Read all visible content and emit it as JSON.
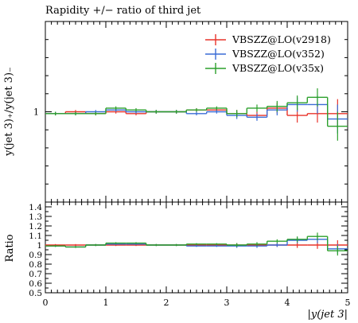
{
  "chart_data": [
    {
      "type": "line",
      "panel": "main",
      "title": "Rapidity +/− ratio of third jet",
      "ylabel": "y(jet 3)₊/y(jet 3)₋",
      "xlim": [
        0,
        5
      ],
      "ylim": [
        0.5,
        1.5
      ],
      "yticks_labeled": [
        {
          "value": 1,
          "label": "1"
        }
      ],
      "legend_position": "top-right",
      "bin_edges": [
        0,
        0.333,
        0.667,
        1,
        1.333,
        1.667,
        2,
        2.333,
        2.667,
        3,
        3.333,
        3.667,
        4,
        4.333,
        4.667,
        5
      ],
      "series": [
        {
          "name": "VBSZZ@LO(v2918)",
          "color": "#e8332a",
          "values": [
            0.99,
            1.0,
            0.99,
            1.0,
            0.99,
            1.0,
            1.0,
            1.01,
            1.01,
            0.99,
            0.98,
            1.02,
            0.98,
            0.99,
            0.99
          ],
          "errors": [
            0.01,
            0.01,
            0.01,
            0.01,
            0.01,
            0.01,
            0.01,
            0.01,
            0.01,
            0.02,
            0.02,
            0.03,
            0.04,
            0.05,
            0.08
          ]
        },
        {
          "name": "VBSZZ@LO(v352)",
          "color": "#3a6cd6",
          "values": [
            0.99,
            0.99,
            1.0,
            1.01,
            1.0,
            1.0,
            1.0,
            0.99,
            1.0,
            0.98,
            0.97,
            1.01,
            1.04,
            1.04,
            0.96
          ],
          "errors": [
            0.01,
            0.01,
            0.01,
            0.01,
            0.01,
            0.01,
            0.01,
            0.01,
            0.01,
            0.02,
            0.02,
            0.03,
            0.04,
            0.05,
            0.08
          ]
        },
        {
          "name": "VBSZZ@LO(v35x)",
          "color": "#2ca02c",
          "values": [
            0.99,
            0.99,
            0.99,
            1.02,
            1.01,
            1.0,
            1.0,
            1.01,
            1.02,
            0.99,
            1.02,
            1.03,
            1.05,
            1.08,
            0.92
          ],
          "errors": [
            0.01,
            0.01,
            0.01,
            0.01,
            0.01,
            0.01,
            0.01,
            0.01,
            0.01,
            0.02,
            0.02,
            0.03,
            0.04,
            0.05,
            0.08
          ]
        }
      ]
    },
    {
      "type": "line",
      "panel": "ratio",
      "ylabel": "Ratio",
      "xlabel": "|y(jet 3|",
      "xlim": [
        0,
        5
      ],
      "ylim": [
        0.5,
        1.45
      ],
      "xticks": [
        "0",
        "1",
        "2",
        "3",
        "4",
        "5"
      ],
      "yticks": [
        "0.5",
        "0.6",
        "0.7",
        "0.8",
        "0.9",
        "1",
        "1.1",
        "1.2",
        "1.3",
        "1.4"
      ],
      "bin_edges": [
        0,
        0.333,
        0.667,
        1,
        1.333,
        1.667,
        2,
        2.333,
        2.667,
        3,
        3.333,
        3.667,
        4,
        4.333,
        4.667,
        5
      ],
      "series": [
        {
          "name": "VBSZZ@LO(v2918)",
          "color": "#e8332a",
          "values": [
            1.0,
            1.0,
            1.0,
            1.0,
            1.0,
            1.0,
            1.0,
            1.0,
            1.0,
            1.0,
            1.0,
            1.0,
            1.0,
            1.0,
            1.0
          ],
          "errors": [
            0.01,
            0.01,
            0.01,
            0.01,
            0.01,
            0.01,
            0.01,
            0.01,
            0.01,
            0.02,
            0.02,
            0.02,
            0.03,
            0.04,
            0.05
          ]
        },
        {
          "name": "VBSZZ@LO(v352)",
          "color": "#3a6cd6",
          "values": [
            0.99,
            0.98,
            1.0,
            1.01,
            1.01,
            1.0,
            1.0,
            0.99,
            0.99,
            0.99,
            0.99,
            1.0,
            1.05,
            1.06,
            0.96
          ],
          "errors": [
            0.01,
            0.01,
            0.01,
            0.01,
            0.01,
            0.01,
            0.01,
            0.01,
            0.01,
            0.02,
            0.02,
            0.02,
            0.03,
            0.04,
            0.05
          ]
        },
        {
          "name": "VBSZZ@LO(v35x)",
          "color": "#2ca02c",
          "values": [
            0.99,
            0.98,
            1.0,
            1.02,
            1.02,
            1.0,
            1.0,
            1.01,
            1.01,
            1.0,
            1.01,
            1.04,
            1.06,
            1.09,
            0.94
          ],
          "errors": [
            0.01,
            0.01,
            0.01,
            0.01,
            0.01,
            0.01,
            0.01,
            0.01,
            0.01,
            0.02,
            0.02,
            0.02,
            0.03,
            0.04,
            0.05
          ]
        }
      ]
    }
  ]
}
